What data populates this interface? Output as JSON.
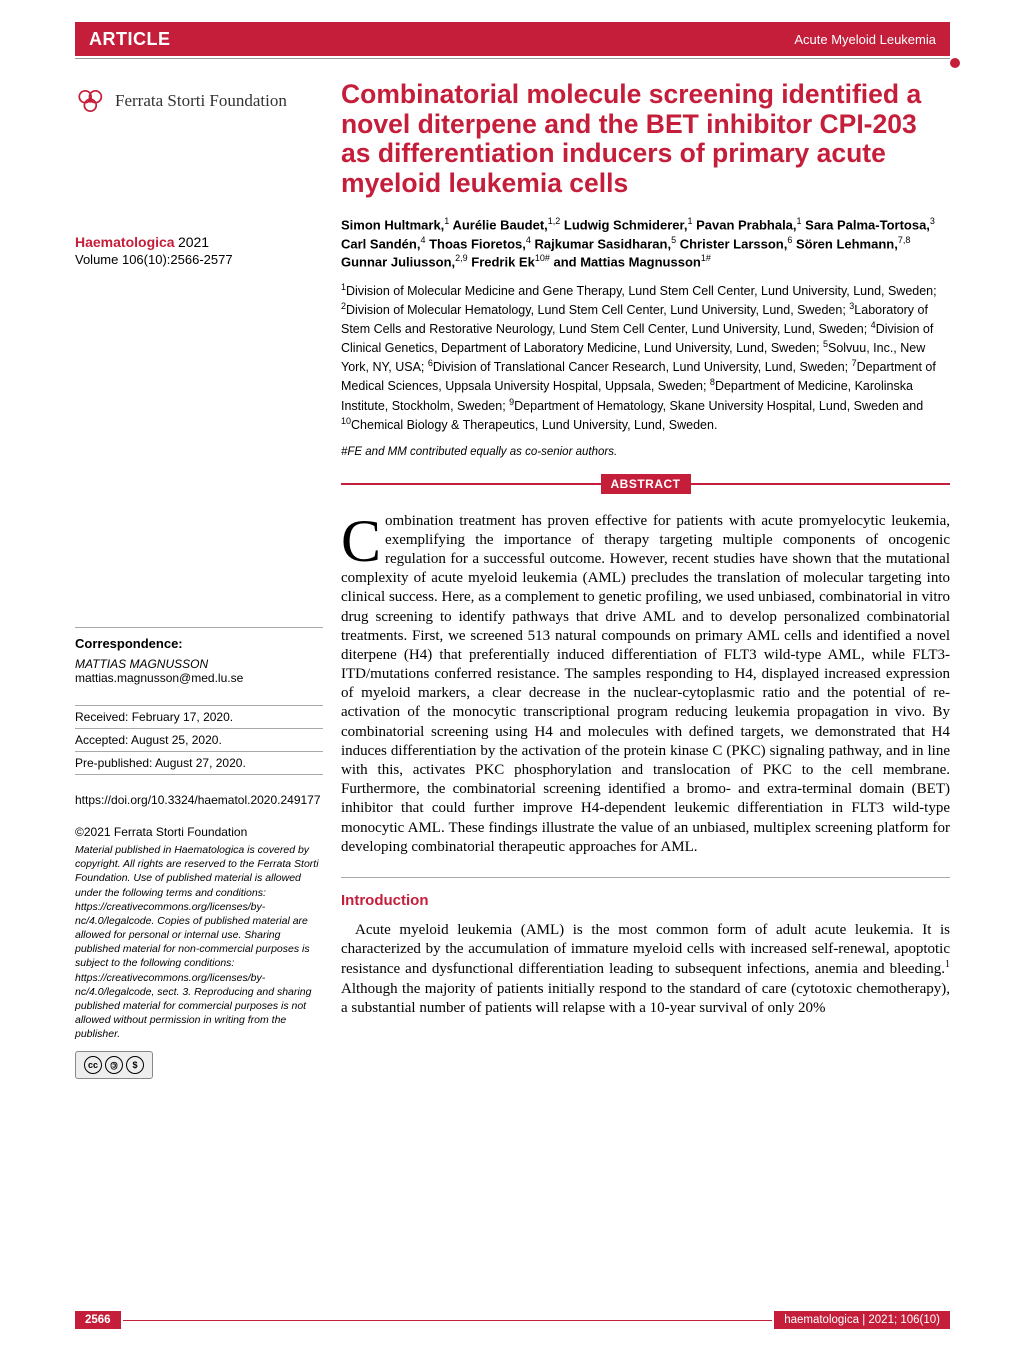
{
  "header": {
    "article_label": "ARTICLE",
    "category": "Acute Myeloid Leukemia"
  },
  "foundation": "Ferrata Storti Foundation",
  "journal": {
    "name": "Haematologica",
    "year": "2021",
    "issue": "Volume 106(10):2566-2577"
  },
  "sidebar": {
    "correspondence_heading": "Correspondence:",
    "corr_name": "MATTIAS MAGNUSSON",
    "corr_email": "mattias.magnusson@med.lu.se",
    "received": "Received: February 17, 2020.",
    "accepted": "Accepted: August 25, 2020.",
    "prepub": "Pre-published: August 27, 2020.",
    "doi": "https://doi.org/10.3324/haematol.2020.249177",
    "copyright": "©2021 Ferrata Storti Foundation",
    "license": "Material published in Haematologica is covered by copyright. All rights are reserved to the Ferrata Storti Foundation. Use of published material is allowed under the following terms and conditions: https://creativecommons.org/licenses/by-nc/4.0/legalcode. Copies of published material are allowed for personal or internal use. Sharing published material for non-commercial purposes is subject to the following conditions: https://creativecommons.org/licenses/by-nc/4.0/legalcode, sect. 3. Reproducing and sharing published material for commercial purposes is not allowed without permission in writing from the publisher.",
    "cc_label": "BY NC"
  },
  "article": {
    "title": "Combinatorial molecule screening identified a novel diterpene and the BET inhibitor CPI-203 as differentiation inducers of primary acute myeloid leukemia cells",
    "authors_html": "Simon Hultmark,<sup>1</sup> Aurélie Baudet,<sup>1,2</sup> Ludwig Schmiderer,<sup>1</sup> Pavan Prabhala,<sup>1</sup> Sara Palma-Tortosa,<sup>3</sup> Carl Sandén,<sup>4</sup> Thoas Fioretos,<sup>4</sup> Rajkumar Sasidharan,<sup>5</sup> Christer Larsson,<sup>6</sup> Sören Lehmann,<sup>7,8</sup> Gunnar Juliusson,<sup>2,9</sup> Fredrik Ek<sup>10#</sup> and Mattias Magnusson<sup>1#</sup>",
    "affiliations_html": "<sup>1</sup>Division of Molecular Medicine and Gene Therapy, Lund Stem Cell Center, Lund University, Lund, Sweden; <sup>2</sup>Division of Molecular Hematology, Lund Stem Cell Center, Lund University, Lund, Sweden; <sup>3</sup>Laboratory of Stem Cells and Restorative Neurology, Lund Stem Cell Center, Lund University, Lund, Sweden; <sup>4</sup>Division of Clinical Genetics, Department of Laboratory Medicine, Lund University, Lund, Sweden; <sup>5</sup>Solvuu, Inc., New York, NY, USA; <sup>6</sup>Division of Translational Cancer Research, Lund University, Lund, Sweden; <sup>7</sup>Department of Medical Sciences, Uppsala University Hospital, Uppsala, Sweden; <sup>8</sup>Department of Medicine, Karolinska Institute, Stockholm, Sweden; <sup>9</sup>Department of Hematology, Skane University Hospital, Lund, Sweden and <sup>10</sup>Chemical Biology & Therapeutics, Lund University, Lund, Sweden.",
    "contrib_note": "#FE and MM contributed equally as co-senior authors.",
    "abstract_heading": "ABSTRACT",
    "abstract_dropcap": "C",
    "abstract_text": "ombination treatment has proven effective for patients with acute promyelocytic leukemia, exemplifying the importance of therapy targeting multiple components of oncogenic regulation for a successful outcome. However, recent studies have shown that the mutational complexity of acute myeloid leukemia (AML) precludes the translation of molecular targeting into clinical success. Here, as a complement to genetic profiling, we used unbiased, combinatorial in vitro drug screening to identify pathways that drive AML and to develop personalized combinatorial treatments. First, we screened 513 natural compounds on primary AML cells and identified a novel diterpene (H4) that preferentially induced differentiation of FLT3 wild-type AML, while FLT3-ITD/mutations conferred resistance. The samples responding to H4, displayed increased expression of myeloid markers, a clear decrease in the nuclear-cytoplasmic ratio and the potential of re-activation of the monocytic transcriptional program reducing leukemia propagation in vivo. By combinatorial screening using H4 and molecules with defined targets, we demonstrated that H4 induces differentiation by the activation of the protein kinase C (PKC) signaling pathway, and in line with this, activates PKC phosphorylation and translocation of PKC to the cell membrane. Furthermore, the combinatorial screening identified a bromo- and extra-terminal domain (BET) inhibitor that could further improve H4-dependent leukemic differentiation in FLT3 wild-type monocytic AML. These findings illustrate the value of an unbiased, multiplex screening platform for developing combinatorial therapeutic approaches for AML.",
    "intro_heading": "Introduction",
    "intro_text": "Acute myeloid leukemia (AML) is the most common form of adult acute leukemia. It is characterized by the accumulation of immature myeloid cells with increased self-renewal, apoptotic resistance and dysfunctional differentiation leading to subsequent infections, anemia and bleeding.<sup>1</sup> Although the majority of patients initially respond to the standard of care (cytotoxic chemotherapy), a substantial number of patients will relapse with a 10-year survival of only 20%"
  },
  "footer": {
    "page_number": "2566",
    "citation": "haematologica | 2021; 106(10)"
  },
  "colors": {
    "accent": "#c41e3a",
    "text": "#000000",
    "background": "#ffffff",
    "divider": "#aaaaaa"
  },
  "typography": {
    "title_fontsize": 26.5,
    "body_fontsize": 15,
    "sidebar_fontsize": 12,
    "author_fontsize": 13
  }
}
